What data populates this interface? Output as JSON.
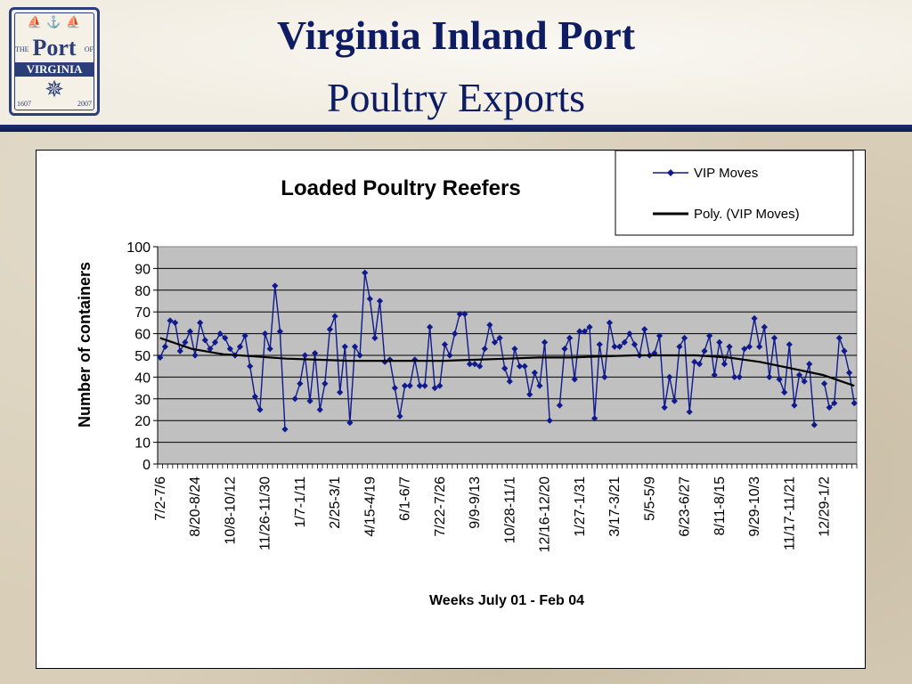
{
  "header": {
    "title": "Virginia Inland Port",
    "subtitle": "Poultry Exports"
  },
  "logo": {
    "the": "THE",
    "port": "Port",
    "of": "OF",
    "name": "VIRGINIA",
    "year_start": "1607",
    "year_end": "2007"
  },
  "colors": {
    "title": "#0d1c63",
    "plot_bg": "#c0c0c0",
    "series": "#0f1a8c",
    "trend": "#000000"
  },
  "chart_data": {
    "type": "line",
    "title": "Loaded Poultry Reefers",
    "xlabel": "Weeks July 01 - Feb 04",
    "ylabel": "Number of containers",
    "ylim": [
      0,
      100
    ],
    "yticks": [
      0,
      10,
      20,
      30,
      40,
      50,
      60,
      70,
      80,
      90,
      100
    ],
    "grid": true,
    "legend_position": "top-right",
    "xtick_labels": [
      "7/2-7/6",
      "8/20-8/24",
      "10/8-10/12",
      "11/26-11/30",
      "1/7-1/11",
      "2/25-3/1",
      "4/15-4/19",
      "6/1-6/7",
      "7/22-7/26",
      "9/9-9/13",
      "10/28-11/1",
      "12/16-12/20",
      "1/27-1/31",
      "3/17-3/21",
      "5/5-5/9",
      "6/23-6/27",
      "8/11-8/15",
      "9/29-10/3",
      "11/17-11/21",
      "12/29-1/2"
    ],
    "series": [
      {
        "name": "VIP Moves",
        "marker": "diamond",
        "values": [
          49,
          54,
          66,
          65,
          52,
          56,
          61,
          50,
          65,
          57,
          53,
          56,
          60,
          58,
          53,
          50,
          54,
          59,
          45,
          31,
          25,
          60,
          53,
          82,
          61,
          16,
          null,
          30,
          37,
          50,
          29,
          51,
          25,
          37,
          62,
          68,
          33,
          54,
          19,
          54,
          50,
          88,
          76,
          58,
          75,
          47,
          48,
          35,
          22,
          36,
          36,
          48,
          36,
          36,
          63,
          35,
          36,
          55,
          50,
          60,
          69,
          69,
          46,
          46,
          45,
          53,
          64,
          56,
          58,
          44,
          38,
          53,
          45,
          45,
          32,
          42,
          36,
          56,
          20,
          null,
          27,
          53,
          58,
          39,
          61,
          61,
          63,
          21,
          55,
          40,
          65,
          54,
          54,
          56,
          60,
          55,
          50,
          62,
          50,
          51,
          59,
          26,
          40,
          29,
          54,
          58,
          24,
          47,
          46,
          52,
          59,
          41,
          56,
          46,
          54,
          40,
          40,
          53,
          54,
          67,
          54,
          63,
          40,
          58,
          39,
          33,
          55,
          27,
          41,
          38,
          46,
          18,
          null,
          37,
          26,
          28,
          58,
          52,
          42,
          28
        ]
      },
      {
        "name": "Poly. (VIP Moves)",
        "style": "line",
        "values": [
          58,
          53,
          50.5,
          49.5,
          48.5,
          48,
          47.5,
          47.5,
          47.5,
          47.5,
          48,
          48.5,
          49,
          49,
          49.5,
          50,
          50,
          50,
          49,
          47,
          44,
          41,
          36
        ]
      }
    ]
  }
}
